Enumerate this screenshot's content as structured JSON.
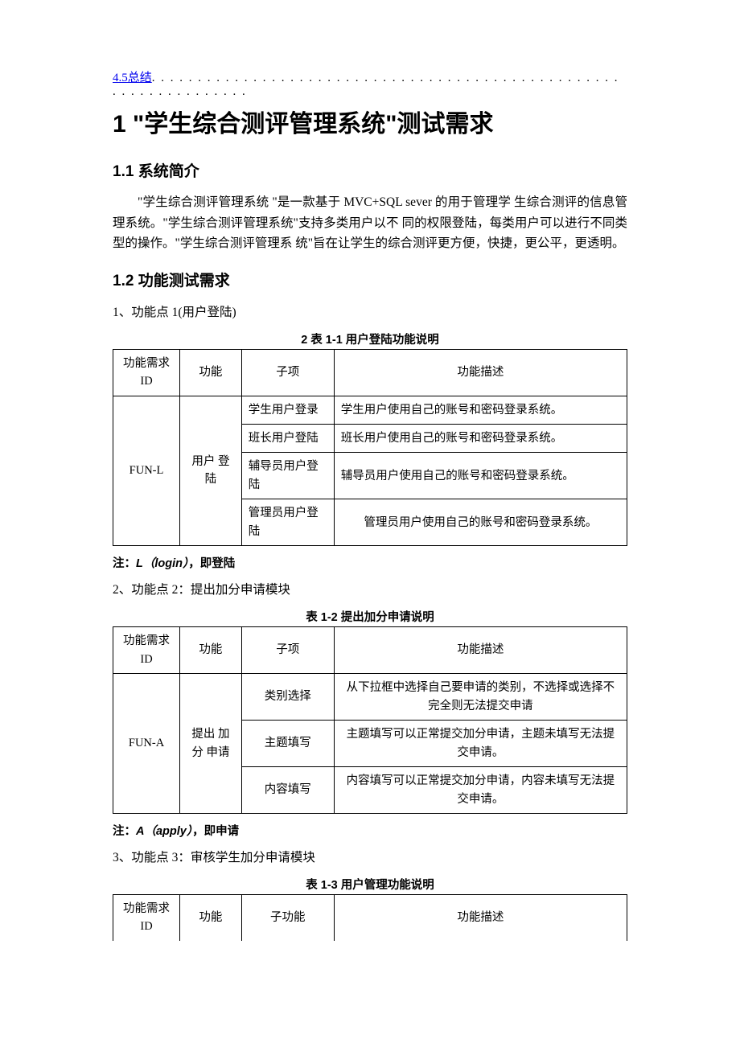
{
  "toc": {
    "label": "4.5总结"
  },
  "chapter": {
    "num": "1",
    "title": "\"学生综合测评管理系统\"测试需求"
  },
  "sec1": {
    "heading": "1.1 系统简介",
    "para": "\"学生综合测评管理系统 \"是一款基于  MVC+SQL sever 的用于管理学  生综合测评的信息管理系统。\"学生综合测评管理系统\"支持多类用户以不  同的权限登陆，每类用户可以进行不同类型的操作。\"学生综合测评管理系  统\"旨在让学生的综合测评更方便，快捷，更公平，更透明。"
  },
  "sec2": {
    "heading": "1.2 功能测试需求"
  },
  "table_headers": {
    "c1": "功能需求ID",
    "c2": "功能",
    "c3": "子项",
    "c3b": "子功能",
    "c4": "功能描述"
  },
  "fp1": {
    "lead": "1、功能点 1(用户登陆)",
    "caption": "2 表 1-1 用户登陆功能说明",
    "id": "FUN-L",
    "func": "用户 登陆",
    "rows": [
      {
        "sub": "学生用户登录",
        "desc": "学生用户使用自己的账号和密码登录系统。"
      },
      {
        "sub": "班长用户登陆",
        "desc": "班长用户使用自己的账号和密码登录系统。"
      },
      {
        "sub": "辅导员用户登陆",
        "desc": "辅导员用户使用自己的账号和密码登录系统。"
      },
      {
        "sub": "管理员用户登陆",
        "desc": "管理员用户使用自己的账号和密码登录系统。"
      }
    ],
    "note_pre": "注：",
    "note_em": "L（login）",
    "note_post": "，即登陆"
  },
  "fp2": {
    "lead": "2、功能点 2：提出加分申请模块",
    "caption": "表 1-2 提出加分申请说明",
    "id": "FUN-A",
    "func": "提出 加分 申请",
    "rows": [
      {
        "sub": "类别选择",
        "desc": "从下拉框中选择自己要申请的类别，不选择或选择不完全则无法提交申请"
      },
      {
        "sub": "主题填写",
        "desc": "主题填写可以正常提交加分申请，主题未填写无法提交申请。"
      },
      {
        "sub": "内容填写",
        "desc": "内容填写可以正常提交加分申请，内容未填写无法提交申请。"
      }
    ],
    "note_pre": "注：",
    "note_em": "A（apply）",
    "note_post": "，即申请"
  },
  "fp3": {
    "lead": "3、功能点 3：审核学生加分申请模块",
    "caption": "表 1-3 用户管理功能说明"
  }
}
